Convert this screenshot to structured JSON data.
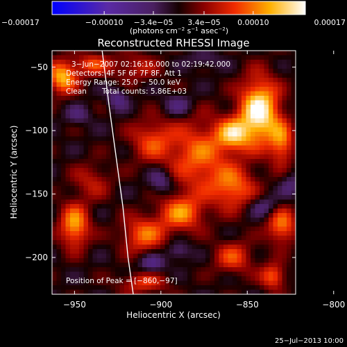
{
  "chart_data": {
    "type": "heatmap",
    "title": "Reconstructed RHESSI Image",
    "xlabel": "Heliocentric X (arcsec)",
    "ylabel": "Heliocentric Y (arcsec)",
    "xlim": [
      -963,
      -822
    ],
    "ylim": [
      -229,
      -37
    ],
    "xticks": [
      -950,
      -900,
      -850,
      -800
    ],
    "xtick_labels": [
      "−950",
      "−900",
      "−850",
      "−800"
    ],
    "yticks": [
      -50,
      -100,
      -150,
      -200
    ],
    "ytick_labels": [
      "−50",
      "−100",
      "−150",
      "−200"
    ],
    "colorbar": {
      "range": [
        -0.00017,
        0.00017
      ],
      "ticks": [
        -0.00017,
        -0.0001,
        -3.4e-05,
        3.4e-05,
        0.0001,
        0.00017
      ],
      "tick_labels": [
        "−0.00017",
        "−0.00010",
        "−3.4e−05",
        "3.4e−05",
        "0.00010",
        "0.00017"
      ],
      "unit_text": "(photons cm",
      "unit_exp1": "−2",
      "unit_mid1": " s",
      "unit_exp2": "−1",
      "unit_mid2": " asec",
      "unit_exp3": "−2",
      "unit_close": ")"
    },
    "annotations": [
      "3−Jun−2007 02:16:16.000 to 02:19:42.000",
      "Detectors: 4F 5F 6F 7F 8F, Att 1",
      "Energy Range: 25.0 − 50.0 keV",
      "Clean",
      "Total counts: 5.86E+03"
    ],
    "peak_label": "Position of Peak = [−860,−97]",
    "peak": [
      -860,
      -97
    ],
    "limb_curve": [
      [
        -934,
        -37
      ],
      [
        -930,
        -80
      ],
      [
        -926,
        -120
      ],
      [
        -922,
        -160
      ],
      [
        -919,
        -200
      ],
      [
        -916,
        -229
      ]
    ],
    "sources": [
      {
        "x": -843,
        "y": -85,
        "amp": 1.0,
        "sx": 8,
        "sy": 18
      },
      {
        "x": -858,
        "y": -103,
        "amp": 0.7,
        "sx": 7,
        "sy": 9
      },
      {
        "x": -878,
        "y": -120,
        "amp": 0.55,
        "sx": 12,
        "sy": 20
      },
      {
        "x": -858,
        "y": -145,
        "amp": 0.55,
        "sx": 9,
        "sy": 12
      },
      {
        "x": -905,
        "y": -108,
        "amp": 0.45,
        "sx": 9,
        "sy": 12
      },
      {
        "x": -957,
        "y": -58,
        "amp": 0.75,
        "sx": 6,
        "sy": 9
      },
      {
        "x": -940,
        "y": -48,
        "amp": 0.45,
        "sx": 7,
        "sy": 6
      },
      {
        "x": -830,
        "y": -110,
        "amp": 0.55,
        "sx": 5,
        "sy": 12
      },
      {
        "x": -830,
        "y": -175,
        "amp": 0.6,
        "sx": 6,
        "sy": 10
      },
      {
        "x": -835,
        "y": -215,
        "amp": 0.55,
        "sx": 5,
        "sy": 7
      },
      {
        "x": -950,
        "y": -175,
        "amp": 0.7,
        "sx": 6,
        "sy": 12
      },
      {
        "x": -910,
        "y": -182,
        "amp": 0.55,
        "sx": 9,
        "sy": 10
      },
      {
        "x": -888,
        "y": -165,
        "amp": 0.6,
        "sx": 9,
        "sy": 10
      },
      {
        "x": -858,
        "y": -200,
        "amp": 0.45,
        "sx": 8,
        "sy": 9
      },
      {
        "x": -910,
        "y": -220,
        "amp": 0.4,
        "sx": 10,
        "sy": 6
      },
      {
        "x": -915,
        "y": -50,
        "amp": 0.3,
        "sx": 10,
        "sy": 8
      },
      {
        "x": -940,
        "y": -140,
        "amp": 0.3,
        "sx": 8,
        "sy": 10
      },
      {
        "x": -925,
        "y": -75,
        "amp": -0.35,
        "sx": 4,
        "sy": 6
      },
      {
        "x": -948,
        "y": -88,
        "amp": -0.25,
        "sx": 5,
        "sy": 5
      },
      {
        "x": -890,
        "y": -80,
        "amp": -0.3,
        "sx": 6,
        "sy": 6
      },
      {
        "x": -900,
        "y": -140,
        "amp": -0.35,
        "sx": 5,
        "sy": 7
      },
      {
        "x": -905,
        "y": -205,
        "amp": -0.4,
        "sx": 5,
        "sy": 5
      },
      {
        "x": -890,
        "y": -195,
        "amp": -0.3,
        "sx": 5,
        "sy": 5
      },
      {
        "x": -825,
        "y": -143,
        "amp": -0.25,
        "sx": 4,
        "sy": 7
      },
      {
        "x": -840,
        "y": -160,
        "amp": -0.3,
        "sx": 6,
        "sy": 6
      },
      {
        "x": -875,
        "y": -45,
        "amp": -0.2,
        "sx": 7,
        "sy": 5
      }
    ]
  },
  "footer": {
    "date_stamp": "25−Jul−2013 10:00"
  }
}
